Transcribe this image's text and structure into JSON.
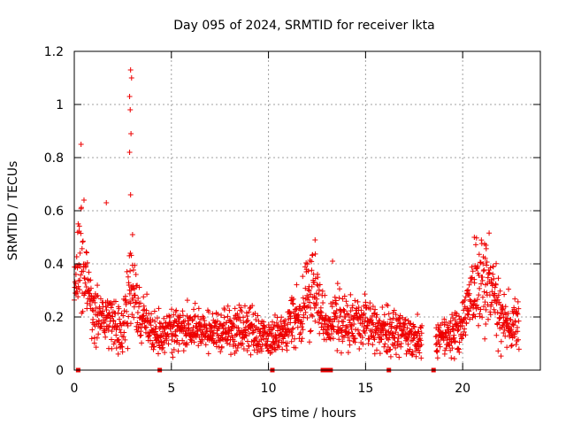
{
  "chart_data": {
    "type": "scatter",
    "title": "Day 095 of 2024, SRMTID for receiver lkta",
    "xlabel": "GPS time / hours",
    "ylabel": "SRMTID / TECUs",
    "xlim": [
      0,
      24
    ],
    "ylim": [
      0,
      1.2
    ],
    "x_ticks": [
      0,
      5,
      10,
      15,
      20
    ],
    "x_tick_labels": [
      "0",
      "5",
      "10",
      "15",
      "20"
    ],
    "y_ticks": [
      0,
      0.2,
      0.4,
      0.6,
      0.8,
      1.0,
      1.2
    ],
    "y_tick_labels": [
      "0",
      "0.2",
      "0.4",
      "0.6",
      "0.8",
      "1",
      "1.2"
    ],
    "grid": true,
    "marker": "+",
    "series_color": "#ee0000",
    "envelope": {
      "description_hours": "approximate median SRMTID by hour",
      "x": [
        0.0,
        0.3,
        0.6,
        1.0,
        1.5,
        2.0,
        2.5,
        2.9,
        3.3,
        4.0,
        5.0,
        6.0,
        7.0,
        8.0,
        9.0,
        10.0,
        11.0,
        11.8,
        12.4,
        13.0,
        13.5,
        14.0,
        15.0,
        16.0,
        17.0,
        17.9,
        18.5,
        19.0,
        19.5,
        20.0,
        20.5,
        21.0,
        21.5,
        22.0,
        22.8
      ],
      "y": [
        0.3,
        0.45,
        0.35,
        0.18,
        0.22,
        0.17,
        0.15,
        0.35,
        0.22,
        0.14,
        0.15,
        0.15,
        0.14,
        0.15,
        0.15,
        0.13,
        0.15,
        0.25,
        0.3,
        0.14,
        0.2,
        0.18,
        0.17,
        0.15,
        0.14,
        0.12,
        0.11,
        0.12,
        0.13,
        0.16,
        0.3,
        0.32,
        0.3,
        0.18,
        0.17
      ]
    },
    "spikes": [
      {
        "x": 0.35,
        "y": 0.85
      },
      {
        "x": 0.5,
        "y": 0.64
      },
      {
        "x": 1.65,
        "y": 0.63
      },
      {
        "x": 2.9,
        "y": 1.13
      },
      {
        "x": 2.95,
        "y": 1.1
      },
      {
        "x": 2.85,
        "y": 1.03
      },
      {
        "x": 2.88,
        "y": 0.98
      },
      {
        "x": 2.92,
        "y": 0.89
      },
      {
        "x": 2.85,
        "y": 0.82
      },
      {
        "x": 2.9,
        "y": 0.66
      },
      {
        "x": 3.0,
        "y": 0.51
      },
      {
        "x": 12.4,
        "y": 0.49
      },
      {
        "x": 13.3,
        "y": 0.41
      },
      {
        "x": 20.6,
        "y": 0.5
      },
      {
        "x": 21.2,
        "y": 0.47
      }
    ],
    "gap_markers_x": [
      0.2,
      4.4,
      10.2,
      12.8,
      13.0,
      13.2,
      16.2,
      18.5
    ]
  }
}
